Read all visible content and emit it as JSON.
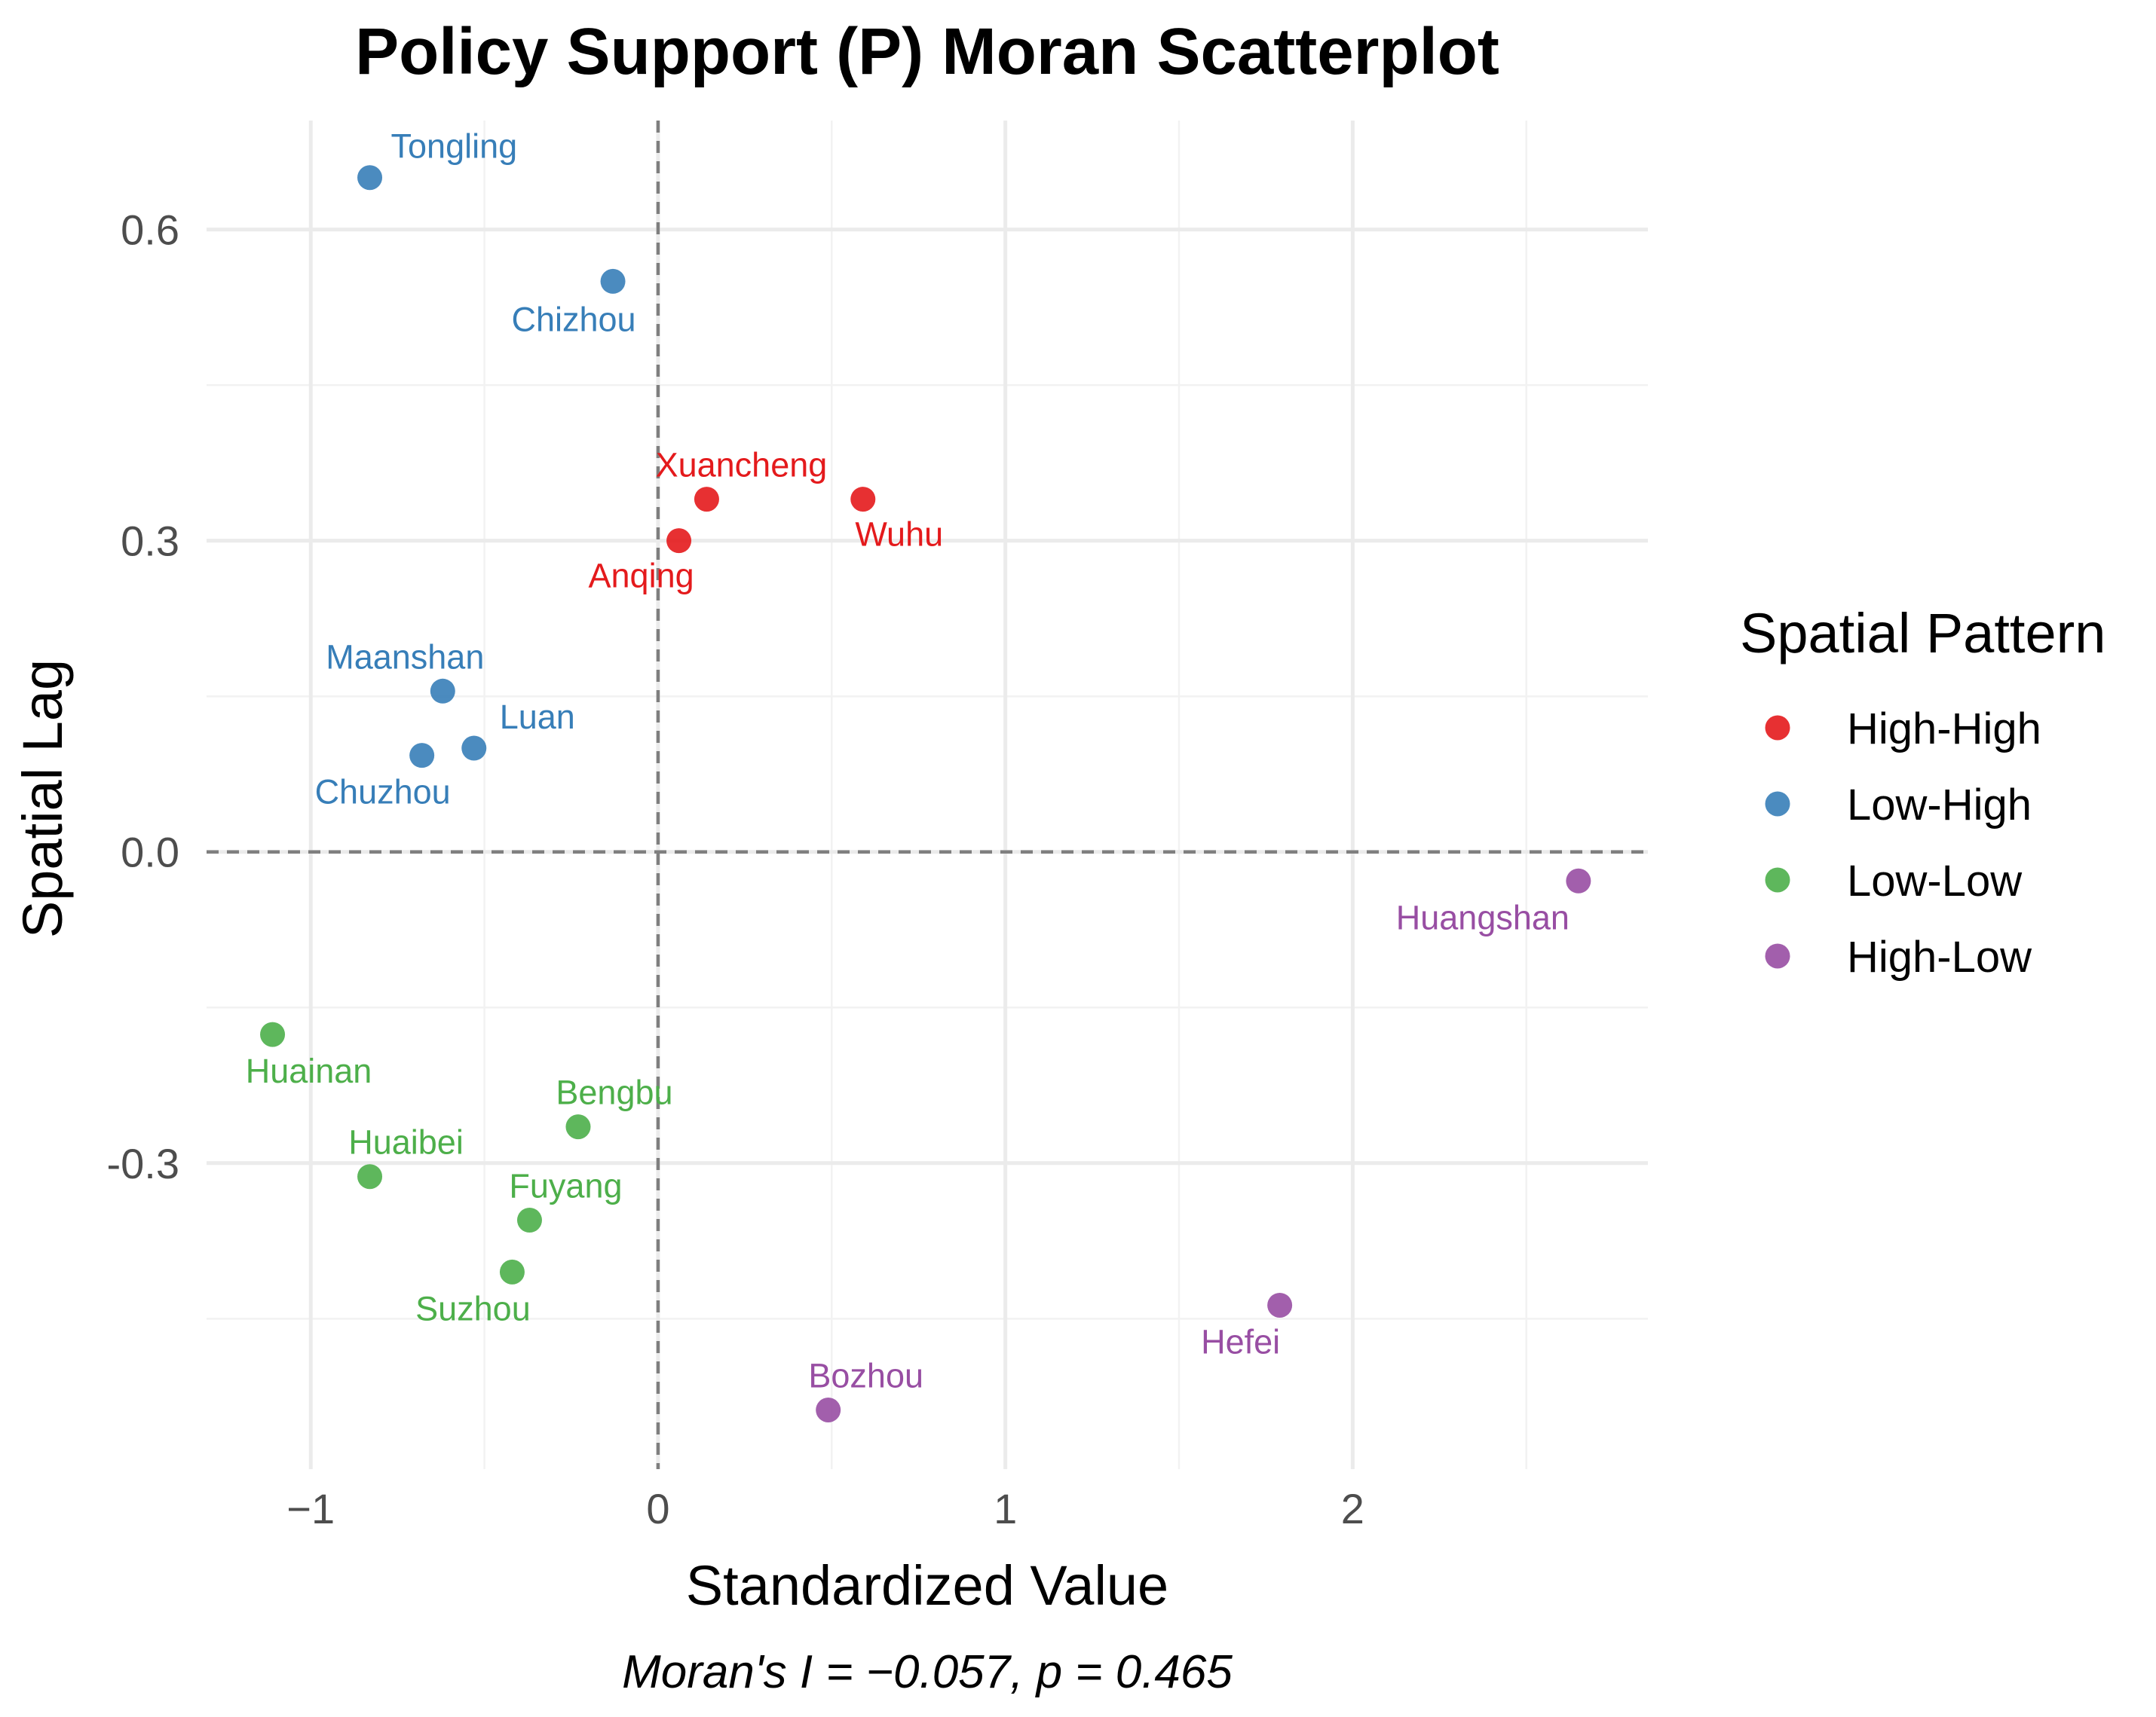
{
  "chart_data": {
    "type": "scatter",
    "title": "Policy Support (P) Moran Scatterplot",
    "xlabel": "Standardized Value",
    "ylabel": "Spatial Lag",
    "caption": "Moran's I = −0.057, p = 0.465",
    "xlim": [
      -1.3,
      2.85
    ],
    "ylim": [
      -0.595,
      0.705
    ],
    "x_ticks": [
      -1,
      0,
      1,
      2
    ],
    "x_tick_labels": [
      "−1",
      "0",
      "1",
      "2"
    ],
    "y_ticks": [
      -0.3,
      0.0,
      0.3,
      0.6
    ],
    "y_tick_labels": [
      "-0.3",
      "0.0",
      "0.3",
      "0.6"
    ],
    "reference_lines": {
      "x": 0,
      "y": 0
    },
    "legend": {
      "title": "Spatial Pattern",
      "position": "right",
      "entries": [
        {
          "name": "High-High",
          "color": "#e41a1c"
        },
        {
          "name": "Low-High",
          "color": "#377eb8"
        },
        {
          "name": "Low-Low",
          "color": "#4daf4a"
        },
        {
          "name": "High-Low",
          "color": "#984ea3"
        }
      ]
    },
    "points": [
      {
        "label": "Tongling",
        "x": -0.83,
        "y": 0.65,
        "pattern": "Low-High"
      },
      {
        "label": "Chizhou",
        "x": -0.13,
        "y": 0.55,
        "pattern": "Low-High"
      },
      {
        "label": "Xuancheng",
        "x": 0.14,
        "y": 0.34,
        "pattern": "High-High"
      },
      {
        "label": "Wuhu",
        "x": 0.59,
        "y": 0.34,
        "pattern": "High-High"
      },
      {
        "label": "Anqing",
        "x": 0.06,
        "y": 0.3,
        "pattern": "High-High"
      },
      {
        "label": "Maanshan",
        "x": -0.62,
        "y": 0.155,
        "pattern": "Low-High"
      },
      {
        "label": "Luan",
        "x": -0.53,
        "y": 0.1,
        "pattern": "Low-High"
      },
      {
        "label": "Chuzhou",
        "x": -0.68,
        "y": 0.093,
        "pattern": "Low-High"
      },
      {
        "label": "Huangshan",
        "x": 2.65,
        "y": -0.028,
        "pattern": "High-Low"
      },
      {
        "label": "Huainan",
        "x": -1.11,
        "y": -0.176,
        "pattern": "Low-Low"
      },
      {
        "label": "Bengbu",
        "x": -0.23,
        "y": -0.265,
        "pattern": "Low-Low"
      },
      {
        "label": "Huaibei",
        "x": -0.83,
        "y": -0.313,
        "pattern": "Low-Low"
      },
      {
        "label": "Fuyang",
        "x": -0.37,
        "y": -0.355,
        "pattern": "Low-Low"
      },
      {
        "label": "Suzhou",
        "x": -0.42,
        "y": -0.405,
        "pattern": "Low-Low"
      },
      {
        "label": "Hefei",
        "x": 1.79,
        "y": -0.437,
        "pattern": "High-Low"
      },
      {
        "label": "Bozhou",
        "x": 0.49,
        "y": -0.538,
        "pattern": "High-Low"
      }
    ]
  }
}
